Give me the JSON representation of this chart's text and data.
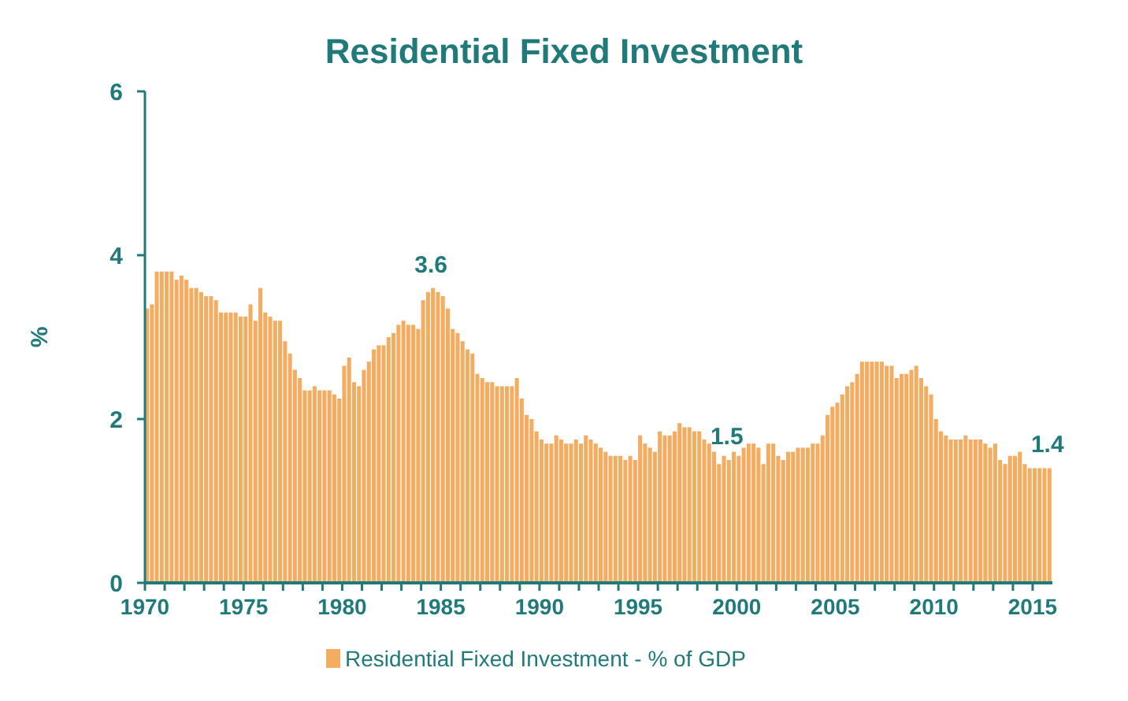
{
  "chart_data": {
    "type": "bar",
    "title": "Residential Fixed Investment",
    "ylabel": "%",
    "x": [
      1970,
      1970.25,
      1970.5,
      1970.75,
      1971,
      1971.25,
      1971.5,
      1971.75,
      1972,
      1972.25,
      1972.5,
      1972.75,
      1973,
      1973.25,
      1973.5,
      1973.75,
      1974,
      1974.25,
      1974.5,
      1974.75,
      1975,
      1975.25,
      1975.5,
      1975.75,
      1976,
      1976.25,
      1976.5,
      1976.75,
      1977,
      1977.25,
      1977.5,
      1977.75,
      1978,
      1978.25,
      1978.5,
      1978.75,
      1979,
      1979.25,
      1979.5,
      1979.75,
      1980,
      1980.25,
      1980.5,
      1980.75,
      1981,
      1981.25,
      1981.5,
      1981.75,
      1982,
      1982.25,
      1982.5,
      1982.75,
      1983,
      1983.25,
      1983.5,
      1983.75,
      1984,
      1984.25,
      1984.5,
      1984.75,
      1985,
      1985.25,
      1985.5,
      1985.75,
      1986,
      1986.25,
      1986.5,
      1986.75,
      1987,
      1987.25,
      1987.5,
      1987.75,
      1988,
      1988.25,
      1988.5,
      1988.75,
      1989,
      1989.25,
      1989.5,
      1989.75,
      1990,
      1990.25,
      1990.5,
      1990.75,
      1991,
      1991.25,
      1991.5,
      1991.75,
      1992,
      1992.25,
      1992.5,
      1992.75,
      1993,
      1993.25,
      1993.5,
      1993.75,
      1994,
      1994.25,
      1994.5,
      1994.75,
      1995,
      1995.25,
      1995.5,
      1995.75,
      1996,
      1996.25,
      1996.5,
      1996.75,
      1997,
      1997.25,
      1997.5,
      1997.75,
      1998,
      1998.25,
      1998.5,
      1998.75,
      1999,
      1999.25,
      1999.5,
      1999.75,
      2000,
      2000.25,
      2000.5,
      2000.75,
      2001,
      2001.25,
      2001.5,
      2001.75,
      2002,
      2002.25,
      2002.5,
      2002.75,
      2003,
      2003.25,
      2003.5,
      2003.75,
      2004,
      2004.25,
      2004.5,
      2004.75,
      2005,
      2005.25,
      2005.5,
      2005.75,
      2006,
      2006.25,
      2006.5,
      2006.75,
      2007,
      2007.25,
      2007.5,
      2007.75,
      2008,
      2008.25,
      2008.5,
      2008.75,
      2009,
      2009.25,
      2009.5,
      2009.75,
      2010,
      2010.25,
      2010.5,
      2010.75,
      2011,
      2011.25,
      2011.5,
      2011.75,
      2012,
      2012.25,
      2012.5,
      2012.75,
      2013,
      2013.25,
      2013.5,
      2013.75,
      2014,
      2014.25,
      2014.5,
      2014.75,
      2015,
      2015.25,
      2015.5,
      2015.75
    ],
    "series": [
      {
        "name": "Residential Fixed Investment - % of GDP",
        "color": "#f4ac60",
        "values": [
          3.35,
          3.4,
          3.8,
          3.8,
          3.8,
          3.8,
          3.7,
          3.75,
          3.7,
          3.6,
          3.6,
          3.55,
          3.5,
          3.5,
          3.45,
          3.3,
          3.3,
          3.3,
          3.3,
          3.25,
          3.25,
          3.4,
          3.2,
          3.6,
          3.3,
          3.25,
          3.2,
          3.2,
          2.95,
          2.8,
          2.6,
          2.5,
          2.35,
          2.35,
          2.4,
          2.35,
          2.35,
          2.35,
          2.3,
          2.25,
          2.65,
          2.75,
          2.45,
          2.4,
          2.6,
          2.7,
          2.85,
          2.9,
          2.9,
          3.0,
          3.05,
          3.15,
          3.2,
          3.15,
          3.15,
          3.1,
          3.45,
          3.55,
          3.6,
          3.55,
          3.5,
          3.35,
          3.1,
          3.05,
          2.95,
          2.85,
          2.8,
          2.55,
          2.5,
          2.45,
          2.45,
          2.4,
          2.4,
          2.4,
          2.4,
          2.5,
          2.25,
          2.05,
          2.0,
          1.85,
          1.75,
          1.7,
          1.7,
          1.8,
          1.75,
          1.7,
          1.7,
          1.75,
          1.7,
          1.8,
          1.75,
          1.7,
          1.65,
          1.6,
          1.55,
          1.55,
          1.55,
          1.5,
          1.55,
          1.5,
          1.8,
          1.7,
          1.65,
          1.6,
          1.85,
          1.8,
          1.8,
          1.85,
          1.95,
          1.9,
          1.9,
          1.85,
          1.85,
          1.75,
          1.7,
          1.6,
          1.45,
          1.55,
          1.5,
          1.6,
          1.55,
          1.65,
          1.7,
          1.7,
          1.65,
          1.45,
          1.7,
          1.7,
          1.55,
          1.5,
          1.6,
          1.6,
          1.65,
          1.65,
          1.65,
          1.7,
          1.7,
          1.8,
          2.05,
          2.15,
          2.2,
          2.3,
          2.4,
          2.45,
          2.55,
          2.7,
          2.7,
          2.7,
          2.7,
          2.7,
          2.65,
          2.65,
          2.5,
          2.55,
          2.55,
          2.6,
          2.65,
          2.5,
          2.4,
          2.3,
          2.0,
          1.85,
          1.8,
          1.75,
          1.75,
          1.75,
          1.8,
          1.75,
          1.75,
          1.75,
          1.7,
          1.65,
          1.7,
          1.5,
          1.45,
          1.55,
          1.55,
          1.6,
          1.45,
          1.4,
          1.4,
          1.4,
          1.4,
          1.4
        ]
      }
    ],
    "xlim": [
      1970,
      2016
    ],
    "xticks": [
      1970,
      {
        "value": 1971,
        "label": null
      },
      {
        "value": 1972,
        "label": null
      },
      {
        "value": 1973,
        "label": null
      },
      {
        "value": 1974,
        "label": null
      },
      1975,
      {
        "value": 1976,
        "label": null
      },
      {
        "value": 1977,
        "label": null
      },
      {
        "value": 1978,
        "label": null
      },
      {
        "value": 1979,
        "label": null
      },
      1980,
      {
        "value": 1981,
        "label": null
      },
      {
        "value": 1982,
        "label": null
      },
      {
        "value": 1983,
        "label": null
      },
      {
        "value": 1984,
        "label": null
      },
      1985,
      {
        "value": 1986,
        "label": null
      },
      {
        "value": 1987,
        "label": null
      },
      {
        "value": 1988,
        "label": null
      },
      {
        "value": 1989,
        "label": null
      },
      1990,
      {
        "value": 1991,
        "label": null
      },
      {
        "value": 1992,
        "label": null
      },
      {
        "value": 1993,
        "label": null
      },
      {
        "value": 1994,
        "label": null
      },
      1995,
      {
        "value": 1996,
        "label": null
      },
      {
        "value": 1997,
        "label": null
      },
      {
        "value": 1998,
        "label": null
      },
      {
        "value": 1999,
        "label": null
      },
      2000,
      {
        "value": 2001,
        "label": null
      },
      {
        "value": 2002,
        "label": null
      },
      {
        "value": 2003,
        "label": null
      },
      {
        "value": 2004,
        "label": null
      },
      2005,
      {
        "value": 2006,
        "label": null
      },
      {
        "value": 2007,
        "label": null
      },
      {
        "value": 2008,
        "label": null
      },
      {
        "value": 2009,
        "label": null
      },
      2010,
      {
        "value": 2011,
        "label": null
      },
      {
        "value": 2012,
        "label": null
      },
      {
        "value": 2013,
        "label": null
      },
      {
        "value": 2014,
        "label": null
      },
      2015
    ],
    "ylim": [
      0,
      6
    ],
    "yticks": [
      0,
      2,
      4,
      6
    ],
    "annotations": [
      {
        "text": "3.6",
        "x": 1984.5,
        "y": 3.6
      },
      {
        "text": "1.5",
        "x": 1999.5,
        "y": 1.5
      },
      {
        "text": "1.4",
        "x": 2015.75,
        "y": 1.4
      }
    ],
    "grid": false,
    "legend": "bottom"
  }
}
